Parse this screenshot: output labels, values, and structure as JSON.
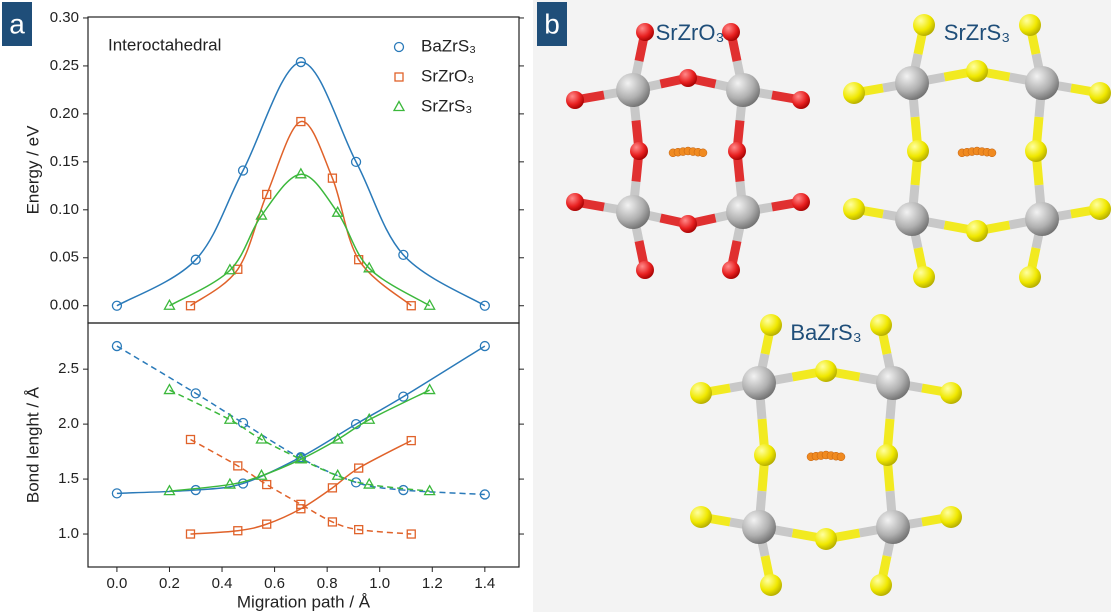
{
  "panel_labels": [
    "a",
    "b"
  ],
  "chart_data": [
    {
      "type": "line",
      "ylabel": "Energy / eV",
      "annotation": "Interoctahedral",
      "xlim": [
        -0.11,
        1.53
      ],
      "ylim": [
        -0.018,
        0.301
      ],
      "yticks": [
        {
          "value": 0,
          "label": "0.00"
        },
        {
          "value": 0.05,
          "label": "0.05"
        },
        {
          "value": 0.1,
          "label": "0.10"
        },
        {
          "value": 0.15,
          "label": "0.15"
        },
        {
          "value": 0.2,
          "label": "0.20"
        },
        {
          "value": 0.25,
          "label": "0.25"
        },
        {
          "value": 0.3,
          "label": "0.30"
        }
      ],
      "legend": "upper right",
      "series": [
        {
          "name": "BaZrS₃",
          "color": "#2a7ab9",
          "marker": "circle",
          "linestyle": "solid",
          "x": [
            0,
            0.3,
            0.48,
            0.7,
            0.91,
            1.09,
            1.4
          ],
          "values": [
            0,
            0.048,
            0.141,
            0.254,
            0.15,
            0.053,
            0
          ]
        },
        {
          "name": "SrZrO₃",
          "color": "#e0622a",
          "marker": "square",
          "linestyle": "solid",
          "x": [
            0.28,
            0.46,
            0.57,
            0.7,
            0.82,
            0.92,
            1.12
          ],
          "values": [
            0,
            0.038,
            0.116,
            0.192,
            0.133,
            0.048,
            0
          ]
        },
        {
          "name": "SrZrS₃",
          "color": "#3cb83c",
          "marker": "triangle",
          "linestyle": "solid",
          "x": [
            0.2,
            0.43,
            0.55,
            0.7,
            0.84,
            0.96,
            1.19
          ],
          "values": [
            0,
            0.037,
            0.094,
            0.137,
            0.097,
            0.039,
            0
          ]
        }
      ]
    },
    {
      "type": "line",
      "ylabel": "Bond lenght / Å",
      "xlabel": "Migration path / Å",
      "xlim": [
        -0.11,
        1.53
      ],
      "ylim": [
        0.7,
        2.92
      ],
      "xticks": [
        {
          "value": 0,
          "label": "0.0"
        },
        {
          "value": 0.2,
          "label": "0.2"
        },
        {
          "value": 0.4,
          "label": "0.4"
        },
        {
          "value": 0.6,
          "label": "0.6"
        },
        {
          "value": 0.8,
          "label": "0.8"
        },
        {
          "value": 1.0,
          "label": "1.0"
        },
        {
          "value": 1.2,
          "label": "1.2"
        },
        {
          "value": 1.4,
          "label": "1.4"
        }
      ],
      "yticks": [
        {
          "value": 1,
          "label": "1.0"
        },
        {
          "value": 1.5,
          "label": "1.5"
        },
        {
          "value": 2,
          "label": "2.0"
        },
        {
          "value": 2.5,
          "label": "2.5"
        }
      ],
      "series": [
        {
          "color": "#2a7ab9",
          "marker": "circle",
          "linestyle": "solid",
          "x": [
            0,
            0.3,
            0.48,
            0.7,
            0.91,
            1.09,
            1.4
          ],
          "values": [
            1.37,
            1.4,
            1.46,
            1.7,
            2.0,
            2.25,
            2.71
          ]
        },
        {
          "color": "#2a7ab9",
          "marker": "circle",
          "linestyle": "dashed",
          "x": [
            0,
            0.3,
            0.48,
            0.7,
            0.91,
            1.09,
            1.4
          ],
          "values": [
            2.71,
            2.28,
            2.01,
            1.69,
            1.47,
            1.4,
            1.36
          ]
        },
        {
          "color": "#e0622a",
          "marker": "square",
          "linestyle": "solid",
          "x": [
            0.28,
            0.46,
            0.57,
            0.7,
            0.82,
            0.92,
            1.12
          ],
          "values": [
            1.0,
            1.03,
            1.09,
            1.23,
            1.42,
            1.6,
            1.85
          ]
        },
        {
          "color": "#e0622a",
          "marker": "square",
          "linestyle": "dashed",
          "x": [
            0.28,
            0.46,
            0.57,
            0.7,
            0.82,
            0.92,
            1.12
          ],
          "values": [
            1.86,
            1.62,
            1.45,
            1.27,
            1.11,
            1.04,
            1.0
          ]
        },
        {
          "color": "#3cb83c",
          "marker": "triangle",
          "linestyle": "solid",
          "x": [
            0.2,
            0.43,
            0.55,
            0.7,
            0.84,
            0.96,
            1.19
          ],
          "values": [
            1.39,
            1.45,
            1.53,
            1.68,
            1.86,
            2.04,
            2.31
          ]
        },
        {
          "color": "#3cb83c",
          "marker": "triangle",
          "linestyle": "dashed",
          "x": [
            0.2,
            0.43,
            0.55,
            0.7,
            0.84,
            0.96,
            1.19
          ],
          "values": [
            2.31,
            2.04,
            1.86,
            1.68,
            1.53,
            1.45,
            1.39
          ]
        }
      ]
    }
  ],
  "structures": [
    {
      "label": "SrZrO₃"
    },
    {
      "label": "SrZrS₃"
    },
    {
      "label": "BaZrS₃"
    }
  ]
}
